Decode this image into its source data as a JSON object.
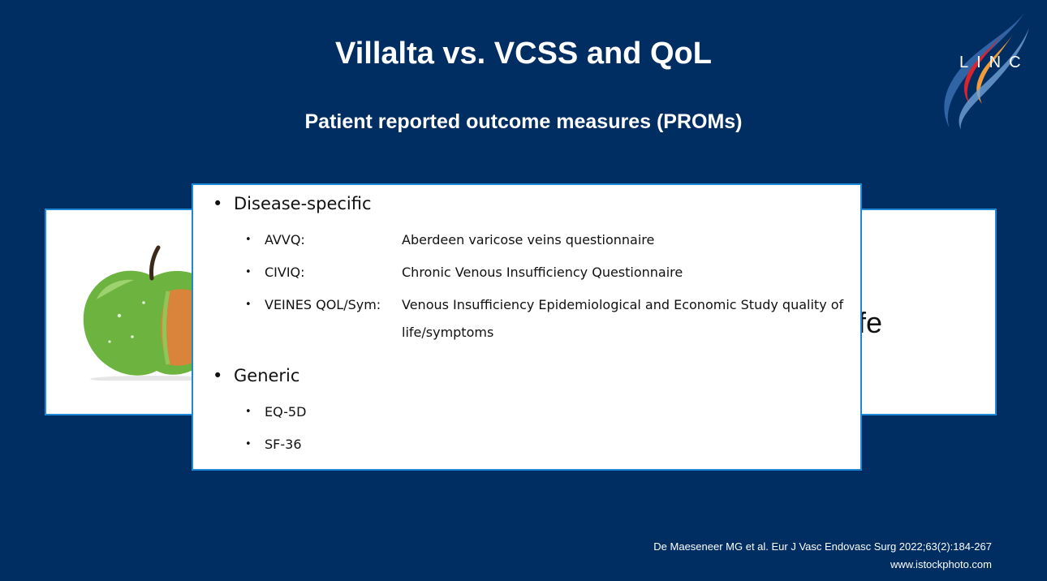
{
  "slide": {
    "title": "Villalta vs. VCSS and QoL",
    "subtitle": "Patient reported outcome measures (PROMs)"
  },
  "logo": {
    "text": "LINC"
  },
  "back_panel": {
    "partial_text": "fe"
  },
  "front_panel": {
    "sections": [
      {
        "heading": "Disease-specific",
        "items": [
          {
            "label": "AVVQ:",
            "description": "Aberdeen varicose veins questionnaire"
          },
          {
            "label": "CIVIQ:",
            "description": "Chronic Venous Insufficiency Questionnaire"
          },
          {
            "label": "VEINES QOL/Sym:",
            "description": "Venous Insufficiency Epidemiological and Economic Study quality of life/symptoms"
          }
        ]
      },
      {
        "heading": "Generic",
        "items": [
          {
            "label": "EQ-5D"
          },
          {
            "label": "SF-36"
          }
        ]
      }
    ],
    "bullet": "•"
  },
  "references": {
    "citation": "De Maeseneer MG et al. Eur J Vasc Endovasc Surg 2022;63(2):184-267",
    "image_credit": "www.istockphoto.com"
  },
  "colors": {
    "background": "#002d62",
    "panel_border": "#1e88d8",
    "apple_green": "#6db33f",
    "apple_flesh": "#d9843a"
  }
}
